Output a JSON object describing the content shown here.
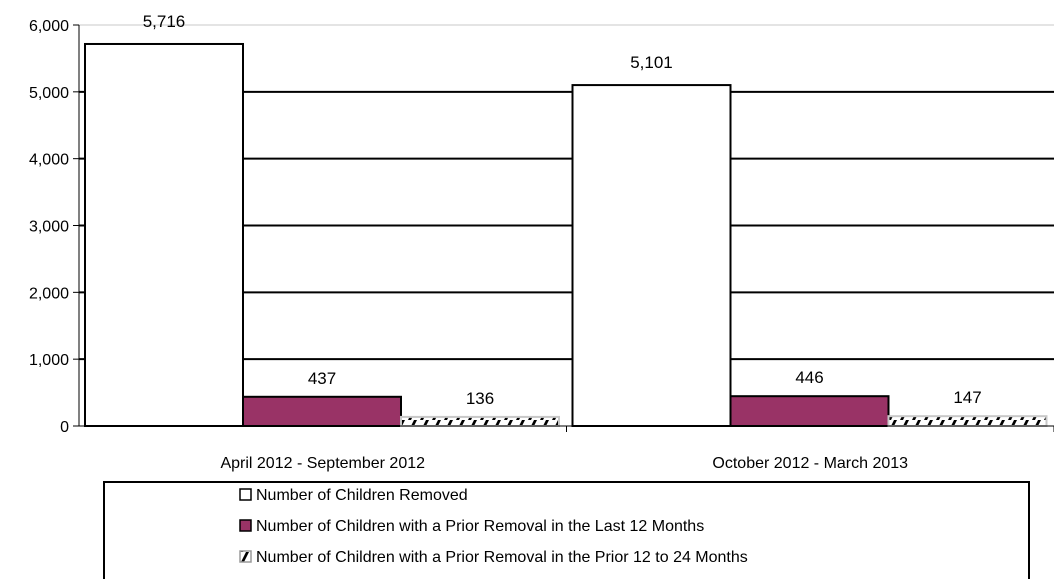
{
  "chart_data": {
    "type": "bar",
    "categories": [
      "April 2012 - September 2012",
      "October 2012 - March 2013"
    ],
    "series": [
      {
        "name": "Number of Children Removed",
        "values": [
          5716,
          5101
        ],
        "color": "#ffffff"
      },
      {
        "name": "Number of Children with a Prior Removal in the Last 12 Months",
        "values": [
          437,
          446
        ],
        "color": "#993366"
      },
      {
        "name": "Number of Children with a Prior Removal in the Prior 12 to 24 Months",
        "values": [
          136,
          147
        ],
        "color": "hatch"
      }
    ],
    "data_labels": [
      [
        "5,716",
        "5,101"
      ],
      [
        "437",
        "446"
      ],
      [
        "136",
        "147"
      ]
    ],
    "yticks": [
      "0",
      "1,000",
      "2,000",
      "3,000",
      "4,000",
      "5,000",
      "6,000"
    ],
    "ylim": [
      0,
      6000
    ],
    "grid": true,
    "legend_position": "bottom"
  }
}
